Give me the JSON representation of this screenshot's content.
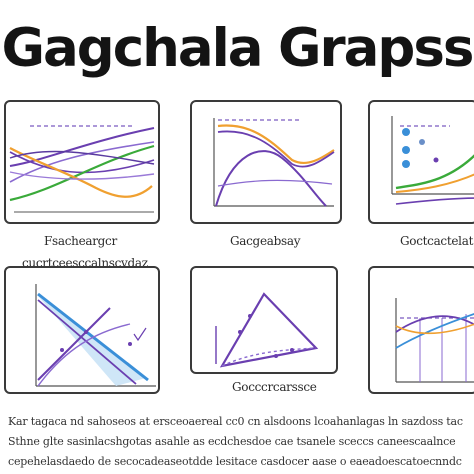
{
  "title": "Gagchala Grapss",
  "captions": {
    "panel1": "Fsacheargcr",
    "panel2": "Gacgeabsay",
    "panel3": "Goctcactelat",
    "panel4": "cucrtceesccalnscvdaz",
    "panel5": "Gocccrcarssce"
  },
  "footer": {
    "line1": "Kar tagaca nd sahoseos at ersceoaereal cc0 cn alsdoons lcoahanlagas ln sazdoss tac",
    "line2": "Sthne glte sasinlacshgotas asahle as ecdchesdoe cae tsanele sceccs caneescaalnce",
    "line3": "cepehelasdaedo de secocadeaseotdde lesitace casdocer aase o eaeadoescatoecnndc"
  },
  "colors": {
    "purple": "#6a3fb0",
    "orange": "#f0a030",
    "green": "#3aaa3a",
    "blue": "#3a8fd8",
    "dark": "#3a3a3a"
  }
}
